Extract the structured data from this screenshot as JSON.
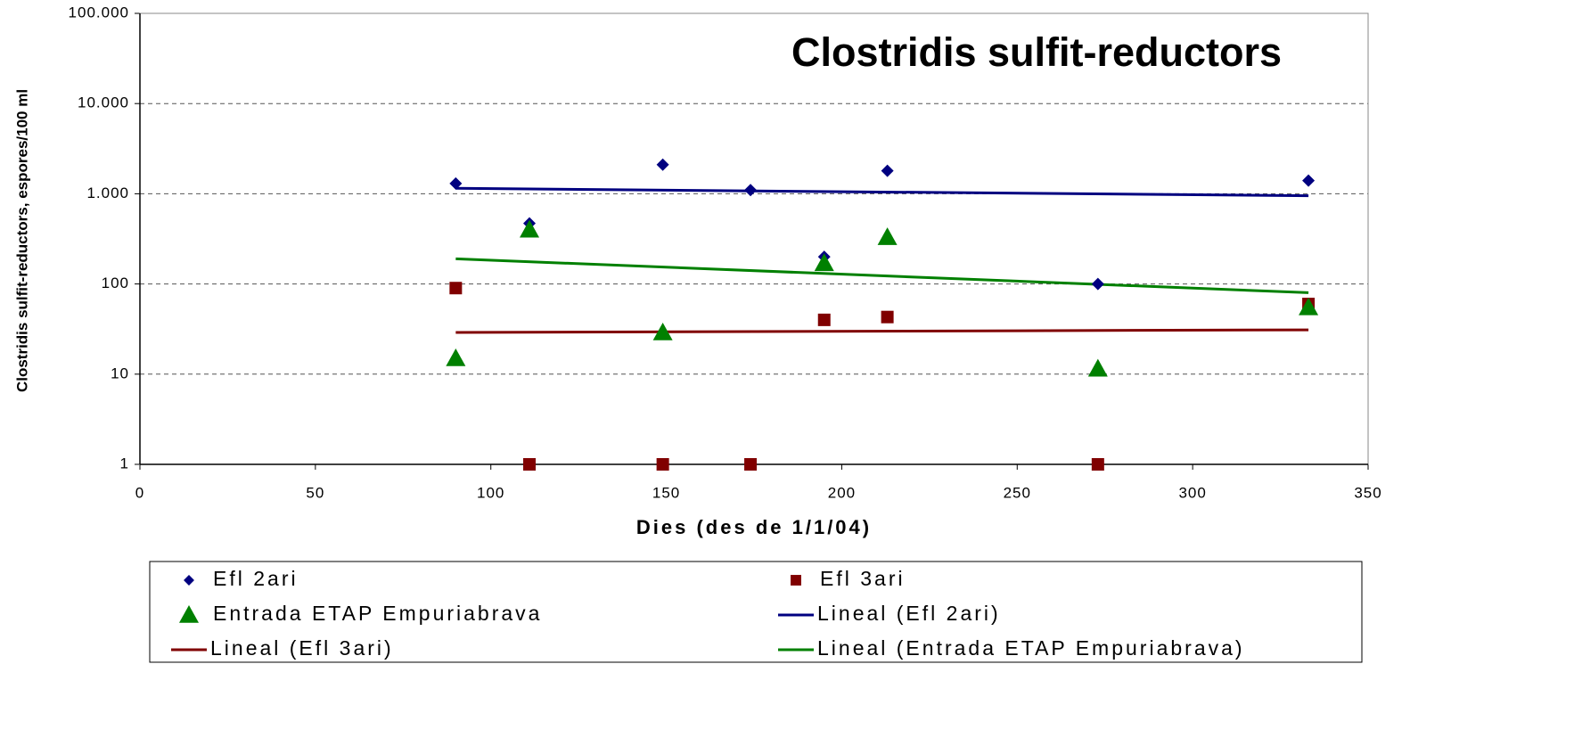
{
  "chart_data": {
    "type": "scatter",
    "title": "Clostridis sulfit-reductors",
    "x_label": "Dies (des de 1/1/04)",
    "y_label": "Clostridis sulfit-reductors, espores/100 ml",
    "xlim": [
      0,
      350
    ],
    "xticks": [
      0,
      50,
      100,
      150,
      200,
      250,
      300,
      350
    ],
    "ylim": [
      1,
      100000
    ],
    "log_y": true,
    "grid": true,
    "yticks": [
      1,
      10,
      100,
      {
        "value": 1000,
        "label": "1.000"
      },
      {
        "value": 10000,
        "label": "10.000"
      },
      {
        "value": 100000,
        "label": "100.000"
      }
    ],
    "series": [
      {
        "name": "Efl 2ari",
        "marker": "diamond",
        "color": "#000080",
        "x": [
          90,
          111,
          149,
          174,
          195,
          213,
          273,
          333
        ],
        "values": [
          1300,
          470,
          2100,
          1100,
          200,
          1800,
          100,
          1400
        ]
      },
      {
        "name": "Efl 3ari",
        "marker": "square",
        "color": "#800000",
        "x": [
          90,
          111,
          149,
          174,
          195,
          213,
          273,
          333
        ],
        "values": [
          90,
          1,
          1,
          1,
          40,
          43,
          1,
          60
        ]
      },
      {
        "name": "Entrada ETAP  Empuriabrava",
        "marker": "triangle",
        "color": "#008000",
        "x": [
          90,
          111,
          149,
          195,
          213,
          273,
          333
        ],
        "values": [
          15,
          400,
          29,
          170,
          330,
          11.5,
          55
        ]
      },
      {
        "name": "Lineal (Efl 2ari)",
        "marker": "line",
        "color": "#000080",
        "x": [
          90,
          333
        ],
        "values": [
          1150,
          950
        ]
      },
      {
        "name": "Lineal (Efl 3ari)",
        "marker": "line",
        "color": "#800000",
        "x": [
          90,
          333
        ],
        "values": [
          29,
          31
        ]
      },
      {
        "name": "Lineal (Entrada ETAP  Empuriabrava)",
        "marker": "line",
        "color": "#008000",
        "x": [
          90,
          333
        ],
        "values": [
          190,
          80
        ]
      }
    ]
  }
}
